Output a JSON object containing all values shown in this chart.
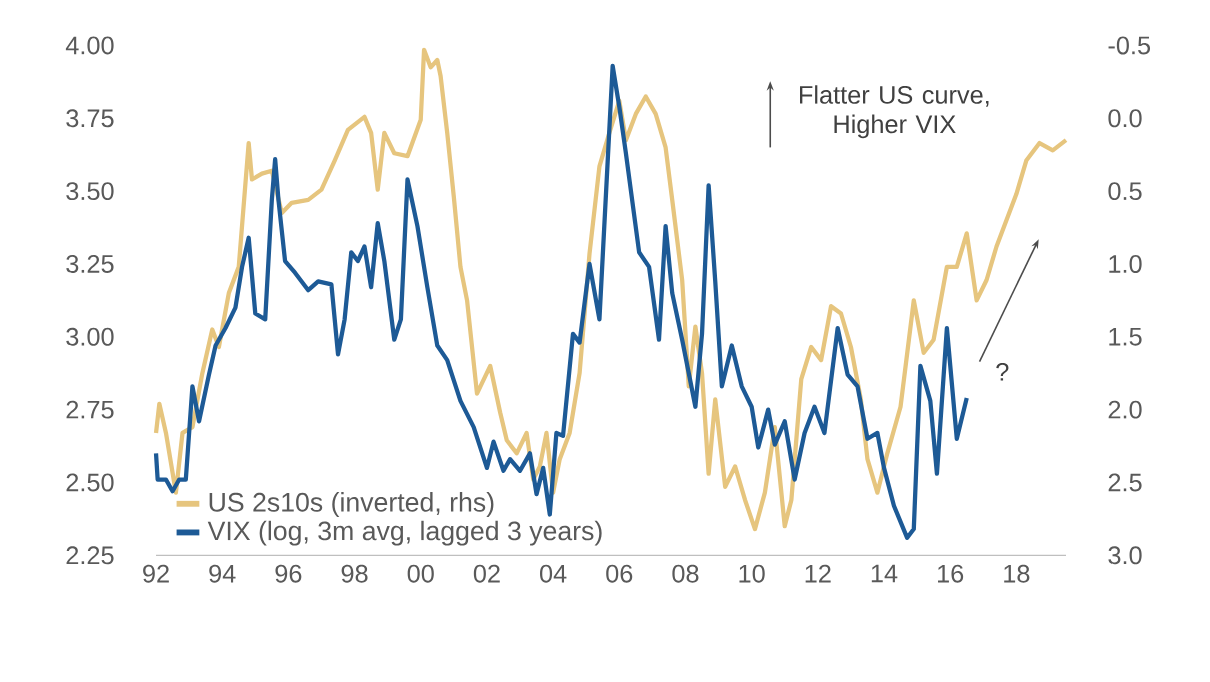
{
  "chart_data": {
    "type": "line",
    "xlim": [
      1992,
      2019.5
    ],
    "xticks": [
      {
        "value": 1992,
        "label": "92"
      },
      {
        "value": 1994,
        "label": "94"
      },
      {
        "value": 1996,
        "label": "96"
      },
      {
        "value": 1998,
        "label": "98"
      },
      {
        "value": 2000,
        "label": "00"
      },
      {
        "value": 2002,
        "label": "02"
      },
      {
        "value": 2004,
        "label": "04"
      },
      {
        "value": 2006,
        "label": "06"
      },
      {
        "value": 2008,
        "label": "08"
      },
      {
        "value": 2010,
        "label": "10"
      },
      {
        "value": 2012,
        "label": "12"
      },
      {
        "value": 2014,
        "label": "14"
      },
      {
        "value": 2016,
        "label": "16"
      },
      {
        "value": 2018,
        "label": "18"
      }
    ],
    "ylim": [
      2.25,
      4.0
    ],
    "yticks": [
      {
        "value": 2.25,
        "label": "2.25"
      },
      {
        "value": 2.5,
        "label": "2.50"
      },
      {
        "value": 2.75,
        "label": "2.75"
      },
      {
        "value": 3.0,
        "label": "3.00"
      },
      {
        "value": 3.25,
        "label": "3.25"
      },
      {
        "value": 3.5,
        "label": "3.50"
      },
      {
        "value": 3.75,
        "label": "3.75"
      },
      {
        "value": 4.0,
        "label": "4.00"
      }
    ],
    "y2lim": [
      3.0,
      -0.5
    ],
    "y2ticks": [
      {
        "value": -0.5,
        "label": "-0.5"
      },
      {
        "value": 0.0,
        "label": "0.0"
      },
      {
        "value": 0.5,
        "label": "0.5"
      },
      {
        "value": 1.0,
        "label": "1.0"
      },
      {
        "value": 1.5,
        "label": "1.5"
      },
      {
        "value": 2.0,
        "label": "2.0"
      },
      {
        "value": 2.5,
        "label": "2.5"
      },
      {
        "value": 3.0,
        "label": "3.0"
      }
    ],
    "grid": false,
    "legend": "bottom left",
    "line_style": "solid",
    "marker": "none",
    "annotations": [
      "Flatter US curve, Higher VIX",
      "?"
    ],
    "series": [
      {
        "name": "US 2s10s (inverted, rhs)",
        "color": "#e6c57e",
        "axis": "y2",
        "x": [
          1992.0,
          1992.1,
          1992.3,
          1992.6,
          1992.8,
          1993.1,
          1993.4,
          1993.7,
          1993.9,
          1994.2,
          1994.5,
          1994.8,
          1994.9,
          1995.2,
          1995.5,
          1995.8,
          1996.1,
          1996.6,
          1997.0,
          1997.4,
          1997.8,
          1998.3,
          1998.5,
          1998.7,
          1998.9,
          1999.2,
          1999.6,
          2000.0,
          2000.1,
          2000.3,
          2000.5,
          2000.6,
          2000.8,
          2001.0,
          2001.2,
          2001.4,
          2001.7,
          2002.1,
          2002.4,
          2002.6,
          2002.9,
          2003.2,
          2003.4,
          2003.6,
          2003.8,
          2004.0,
          2004.2,
          2004.5,
          2004.8,
          2005.1,
          2005.4,
          2005.7,
          2006.0,
          2006.2,
          2006.5,
          2006.8,
          2007.1,
          2007.4,
          2007.6,
          2007.9,
          2008.1,
          2008.3,
          2008.5,
          2008.7,
          2008.9,
          2009.2,
          2009.5,
          2009.8,
          2010.1,
          2010.4,
          2010.7,
          2011.0,
          2011.2,
          2011.5,
          2011.8,
          2012.1,
          2012.4,
          2012.7,
          2013.0,
          2013.3,
          2013.5,
          2013.8,
          2014.1,
          2014.5,
          2014.9,
          2015.2,
          2015.5,
          2015.9,
          2016.2,
          2016.5,
          2016.8,
          2017.1,
          2017.4,
          2017.7,
          2018.0,
          2018.3,
          2018.7,
          2019.1,
          2019.5
        ],
        "values": [
          2.16,
          1.96,
          2.16,
          2.57,
          2.16,
          2.12,
          1.75,
          1.45,
          1.57,
          1.2,
          1.02,
          0.17,
          0.42,
          0.38,
          0.36,
          0.65,
          0.58,
          0.56,
          0.49,
          0.29,
          0.08,
          -0.01,
          0.1,
          0.49,
          0.1,
          0.24,
          0.26,
          0.01,
          -0.47,
          -0.35,
          -0.4,
          -0.29,
          0.1,
          0.54,
          1.02,
          1.25,
          1.89,
          1.7,
          2.02,
          2.21,
          2.3,
          2.16,
          2.48,
          2.39,
          2.16,
          2.57,
          2.34,
          2.16,
          1.75,
          0.93,
          0.33,
          0.1,
          -0.12,
          0.15,
          -0.03,
          -0.15,
          -0.03,
          0.2,
          0.56,
          1.11,
          1.84,
          1.43,
          1.75,
          2.44,
          1.93,
          2.53,
          2.39,
          2.62,
          2.82,
          2.57,
          2.12,
          2.8,
          2.62,
          1.79,
          1.57,
          1.66,
          1.29,
          1.34,
          1.57,
          1.93,
          2.34,
          2.57,
          2.3,
          1.98,
          1.25,
          1.61,
          1.52,
          1.02,
          1.02,
          0.79,
          1.25,
          1.11,
          0.88,
          0.7,
          0.52,
          0.29,
          0.17,
          0.22,
          0.15
        ]
      },
      {
        "name": "VIX (log, 3m avg, lagged 3 years)",
        "color": "#1d5a96",
        "x": [
          1992.0,
          1992.05,
          1992.3,
          1992.5,
          1992.7,
          1992.9,
          1993.1,
          1993.3,
          1993.6,
          1993.8,
          1994.1,
          1994.4,
          1994.6,
          1994.8,
          1995.0,
          1995.3,
          1995.5,
          1995.6,
          1995.7,
          1995.9,
          1996.2,
          1996.6,
          1996.9,
          1997.3,
          1997.5,
          1997.7,
          1997.9,
          1998.1,
          1998.3,
          1998.5,
          1998.7,
          1998.9,
          1999.2,
          1999.4,
          1999.6,
          1999.9,
          2000.2,
          2000.5,
          2000.8,
          2001.2,
          2001.6,
          2002.0,
          2002.2,
          2002.5,
          2002.7,
          2003.0,
          2003.3,
          2003.5,
          2003.7,
          2003.9,
          2004.1,
          2004.3,
          2004.6,
          2004.8,
          2005.1,
          2005.4,
          2005.8,
          2006.0,
          2006.2,
          2006.6,
          2006.9,
          2007.2,
          2007.4,
          2007.6,
          2007.9,
          2008.3,
          2008.5,
          2008.7,
          2008.9,
          2009.1,
          2009.4,
          2009.7,
          2010.0,
          2010.2,
          2010.5,
          2010.7,
          2011.0,
          2011.3,
          2011.6,
          2011.9,
          2012.2,
          2012.6,
          2012.9,
          2013.2,
          2013.5,
          2013.8,
          2014.0,
          2014.3,
          2014.7,
          2014.9,
          2015.1,
          2015.4,
          2015.6,
          2015.9,
          2016.2,
          2016.5
        ],
        "values": [
          2.6,
          2.51,
          2.51,
          2.47,
          2.51,
          2.51,
          2.83,
          2.71,
          2.87,
          2.97,
          3.03,
          3.1,
          3.24,
          3.34,
          3.08,
          3.06,
          3.47,
          3.61,
          3.47,
          3.26,
          3.22,
          3.16,
          3.19,
          3.18,
          2.94,
          3.06,
          3.29,
          3.26,
          3.31,
          3.17,
          3.39,
          3.26,
          2.99,
          3.06,
          3.54,
          3.38,
          3.17,
          2.97,
          2.92,
          2.78,
          2.69,
          2.55,
          2.64,
          2.54,
          2.58,
          2.54,
          2.6,
          2.46,
          2.55,
          2.39,
          2.67,
          2.66,
          3.01,
          2.98,
          3.25,
          3.06,
          3.93,
          3.79,
          3.63,
          3.29,
          3.24,
          2.99,
          3.38,
          3.15,
          2.99,
          2.76,
          3.01,
          3.52,
          3.19,
          2.83,
          2.97,
          2.83,
          2.76,
          2.62,
          2.75,
          2.63,
          2.71,
          2.51,
          2.67,
          2.76,
          2.67,
          3.03,
          2.87,
          2.83,
          2.65,
          2.67,
          2.55,
          2.42,
          2.31,
          2.34,
          2.9,
          2.78,
          2.53,
          3.03,
          2.65,
          2.79
        ]
      }
    ]
  }
}
